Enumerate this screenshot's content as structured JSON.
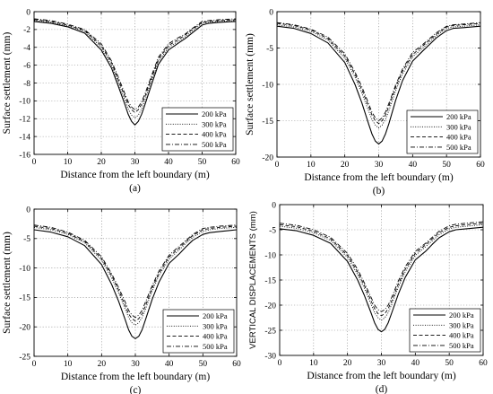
{
  "chart_data": [
    {
      "type": "line",
      "panel_label": "(a)",
      "xlabel": "Distance from the left boundary (m)",
      "ylabel": "Surface settlement (mm)",
      "xlim": [
        0,
        60
      ],
      "ylim": [
        -16,
        0
      ],
      "xticks": [
        "0",
        "10",
        "20",
        "30",
        "40",
        "50",
        "60"
      ],
      "yticks": [
        "0",
        "-2",
        "-4",
        "-6",
        "-8",
        "-10",
        "-12",
        "-14",
        "-16"
      ],
      "grid": true,
      "legend": "bottom-right",
      "x": [
        0,
        5,
        10,
        15,
        20,
        23,
        25,
        27,
        28,
        29,
        30,
        31,
        32,
        33,
        35,
        37,
        40,
        43,
        45,
        47,
        50,
        52,
        55,
        60
      ],
      "series": [
        {
          "name": "200 kPa",
          "style": "solid",
          "values": [
            -1.1,
            -1.3,
            -1.7,
            -2.4,
            -4.3,
            -6.3,
            -8.3,
            -10.4,
            -11.5,
            -12.3,
            -12.7,
            -12.3,
            -11.5,
            -10.4,
            -8.1,
            -5.9,
            -4.3,
            -3.5,
            -3.0,
            -2.4,
            -1.5,
            -1.3,
            -1.2,
            -1.1
          ]
        },
        {
          "name": "300 kPa",
          "style": "dotted",
          "values": [
            -1.0,
            -1.2,
            -1.6,
            -2.2,
            -4.0,
            -6.0,
            -7.9,
            -9.9,
            -10.9,
            -11.6,
            -11.9,
            -11.6,
            -10.9,
            -9.9,
            -7.7,
            -5.6,
            -4.0,
            -3.3,
            -2.8,
            -2.2,
            -1.3,
            -1.2,
            -1.1,
            -1.0
          ]
        },
        {
          "name": "400 kPa",
          "style": "dashed",
          "values": [
            -0.9,
            -1.1,
            -1.5,
            -2.1,
            -3.8,
            -5.7,
            -7.6,
            -9.5,
            -10.4,
            -11.0,
            -11.3,
            -11.0,
            -10.4,
            -9.5,
            -7.4,
            -5.3,
            -3.8,
            -3.1,
            -2.6,
            -2.0,
            -1.2,
            -1.1,
            -1.0,
            -0.9
          ]
        },
        {
          "name": "500 kPa",
          "style": "dashdot",
          "values": [
            -0.8,
            -1.0,
            -1.4,
            -2.0,
            -3.6,
            -5.5,
            -7.3,
            -9.2,
            -10.1,
            -10.7,
            -11.0,
            -10.7,
            -10.1,
            -9.2,
            -7.1,
            -5.1,
            -3.6,
            -2.9,
            -2.5,
            -1.9,
            -1.1,
            -1.0,
            -0.9,
            -0.8
          ]
        }
      ]
    },
    {
      "type": "line",
      "panel_label": "(b)",
      "xlabel": "Distance from the left boundary (m)",
      "ylabel": "Surface settlement (mm)",
      "xlim": [
        0,
        60
      ],
      "ylim": [
        -20,
        0
      ],
      "xticks": [
        "0",
        "10",
        "20",
        "30",
        "40",
        "50",
        "60"
      ],
      "yticks": [
        "0",
        "-5",
        "-10",
        "-15",
        "-20"
      ],
      "grid": true,
      "legend": "bottom-right",
      "x": [
        0,
        5,
        10,
        15,
        20,
        23,
        25,
        27,
        28,
        29,
        30,
        31,
        32,
        33,
        35,
        37,
        40,
        43,
        45,
        47,
        50,
        52,
        55,
        60
      ],
      "series": [
        {
          "name": "200 kPa",
          "style": "solid",
          "values": [
            -2.0,
            -2.3,
            -3.0,
            -4.3,
            -7.0,
            -10.0,
            -12.5,
            -15.4,
            -16.8,
            -17.8,
            -18.2,
            -17.8,
            -16.8,
            -15.4,
            -12.2,
            -9.5,
            -6.8,
            -5.4,
            -4.5,
            -3.6,
            -2.6,
            -2.3,
            -2.2,
            -2.0
          ]
        },
        {
          "name": "300 kPa",
          "style": "dotted",
          "values": [
            -1.8,
            -2.1,
            -2.7,
            -3.9,
            -6.4,
            -9.0,
            -11.2,
            -13.6,
            -14.8,
            -15.6,
            -16.0,
            -15.6,
            -14.8,
            -13.6,
            -10.9,
            -8.6,
            -6.2,
            -5.0,
            -4.2,
            -3.3,
            -2.3,
            -2.1,
            -2.0,
            -1.8
          ]
        },
        {
          "name": "400 kPa",
          "style": "dashed",
          "values": [
            -1.6,
            -1.9,
            -2.5,
            -3.7,
            -6.1,
            -8.6,
            -10.7,
            -13.0,
            -14.2,
            -15.0,
            -15.4,
            -15.0,
            -14.2,
            -13.0,
            -10.4,
            -8.2,
            -5.9,
            -4.7,
            -3.9,
            -3.1,
            -2.1,
            -1.9,
            -1.8,
            -1.6
          ]
        },
        {
          "name": "500 kPa",
          "style": "dashdot",
          "values": [
            -1.5,
            -1.8,
            -2.4,
            -3.5,
            -5.8,
            -8.3,
            -10.3,
            -12.6,
            -13.8,
            -14.6,
            -15.0,
            -14.6,
            -13.8,
            -12.6,
            -10.1,
            -7.9,
            -5.6,
            -4.5,
            -3.7,
            -2.9,
            -2.0,
            -1.8,
            -1.7,
            -1.5
          ]
        }
      ]
    },
    {
      "type": "line",
      "panel_label": "(c)",
      "xlabel": "Distance from the left boundary (m)",
      "ylabel": "Surface settlement (mm)",
      "xlim": [
        0,
        60
      ],
      "ylim": [
        -25,
        0
      ],
      "xticks": [
        "0",
        "10",
        "20",
        "30",
        "40",
        "50",
        "60"
      ],
      "yticks": [
        "0",
        "-5",
        "-10",
        "-15",
        "-20",
        "-25"
      ],
      "grid": true,
      "legend": "bottom-right",
      "x": [
        0,
        5,
        10,
        15,
        20,
        23,
        25,
        27,
        28,
        29,
        30,
        31,
        32,
        33,
        35,
        37,
        40,
        43,
        45,
        47,
        50,
        52,
        55,
        60
      ],
      "series": [
        {
          "name": "200 kPa",
          "style": "solid",
          "values": [
            -3.5,
            -3.9,
            -4.7,
            -6.2,
            -9.4,
            -12.8,
            -15.6,
            -18.8,
            -20.5,
            -21.6,
            -22.0,
            -21.6,
            -20.5,
            -18.8,
            -15.3,
            -12.4,
            -9.2,
            -7.6,
            -6.4,
            -5.3,
            -4.3,
            -4.0,
            -3.8,
            -3.5
          ]
        },
        {
          "name": "300 kPa",
          "style": "dotted",
          "values": [
            -3.1,
            -3.5,
            -4.3,
            -5.7,
            -8.7,
            -11.7,
            -14.2,
            -17.0,
            -18.4,
            -19.3,
            -19.7,
            -19.3,
            -18.4,
            -17.0,
            -13.9,
            -11.3,
            -8.5,
            -6.9,
            -5.8,
            -4.8,
            -3.8,
            -3.5,
            -3.3,
            -3.1
          ]
        },
        {
          "name": "400 kPa",
          "style": "dashed",
          "values": [
            -2.9,
            -3.3,
            -4.1,
            -5.5,
            -8.4,
            -11.3,
            -13.7,
            -16.4,
            -17.8,
            -18.6,
            -19.0,
            -18.6,
            -17.8,
            -16.4,
            -13.4,
            -10.9,
            -8.1,
            -6.6,
            -5.5,
            -4.5,
            -3.5,
            -3.3,
            -3.1,
            -2.9
          ]
        },
        {
          "name": "500 kPa",
          "style": "dashdot",
          "values": [
            -2.7,
            -3.1,
            -3.9,
            -5.3,
            -8.1,
            -11.0,
            -13.3,
            -15.8,
            -17.2,
            -18.0,
            -18.4,
            -18.0,
            -17.2,
            -15.8,
            -13.0,
            -10.5,
            -7.8,
            -6.3,
            -5.3,
            -4.3,
            -3.3,
            -3.1,
            -2.9,
            -2.7
          ]
        }
      ]
    },
    {
      "type": "line",
      "panel_label": "(d)",
      "xlabel": "Distance from the left boundary (m)",
      "ylabel": "VERTICAL DISPLACEMENTS (mm)",
      "xlim": [
        0,
        60
      ],
      "ylim": [
        -30,
        0
      ],
      "xticks": [
        "0",
        "10",
        "20",
        "30",
        "40",
        "50",
        "60"
      ],
      "yticks": [
        "0",
        "-5",
        "-10",
        "-15",
        "-20",
        "-25",
        "-30"
      ],
      "grid": true,
      "legend": "bottom-right",
      "x": [
        0,
        5,
        10,
        15,
        20,
        23,
        25,
        27,
        28,
        29,
        30,
        31,
        32,
        33,
        35,
        37,
        40,
        43,
        45,
        47,
        50,
        52,
        55,
        60
      ],
      "series": [
        {
          "name": "200 kPa",
          "style": "solid",
          "values": [
            -4.8,
            -5.2,
            -6.1,
            -7.7,
            -11.3,
            -15.0,
            -18.1,
            -21.6,
            -23.5,
            -24.8,
            -25.3,
            -24.8,
            -23.5,
            -21.6,
            -17.8,
            -14.5,
            -11.0,
            -9.3,
            -7.9,
            -6.6,
            -5.4,
            -5.0,
            -4.8,
            -4.5
          ]
        },
        {
          "name": "300 kPa",
          "style": "dotted",
          "values": [
            -4.3,
            -4.7,
            -5.6,
            -7.1,
            -10.5,
            -13.9,
            -16.7,
            -19.9,
            -21.5,
            -22.5,
            -23.0,
            -22.5,
            -21.5,
            -19.9,
            -16.4,
            -13.4,
            -10.1,
            -8.4,
            -7.2,
            -6.0,
            -4.8,
            -4.5,
            -4.3,
            -4.0
          ]
        },
        {
          "name": "400 kPa",
          "style": "dashed",
          "values": [
            -4.0,
            -4.4,
            -5.3,
            -6.8,
            -10.1,
            -13.4,
            -16.1,
            -19.2,
            -20.7,
            -21.7,
            -22.1,
            -21.7,
            -20.7,
            -19.2,
            -15.8,
            -12.9,
            -9.7,
            -8.0,
            -6.8,
            -5.6,
            -4.5,
            -4.2,
            -4.0,
            -3.7
          ]
        },
        {
          "name": "500 kPa",
          "style": "dashdot",
          "values": [
            -3.7,
            -4.1,
            -5.0,
            -6.5,
            -9.7,
            -12.9,
            -15.6,
            -18.5,
            -20.0,
            -20.9,
            -21.3,
            -20.9,
            -20.0,
            -18.5,
            -15.2,
            -12.4,
            -9.3,
            -7.7,
            -6.5,
            -5.3,
            -4.2,
            -3.9,
            -3.7,
            -3.4
          ]
        }
      ]
    }
  ]
}
